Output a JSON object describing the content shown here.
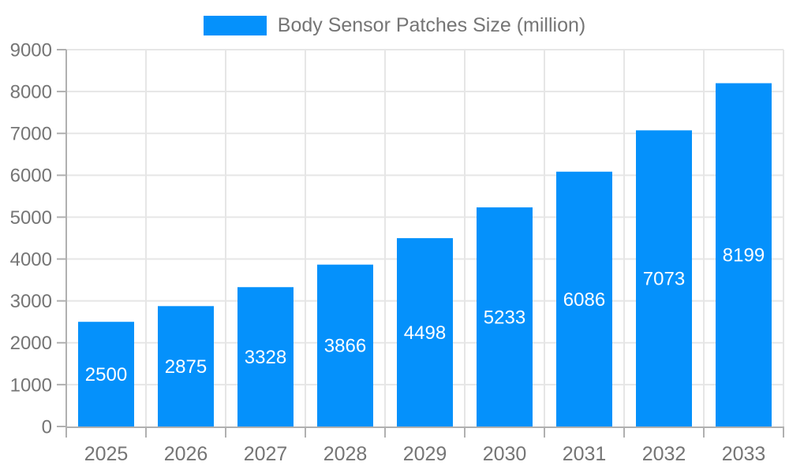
{
  "legend": {
    "label": "Body Sensor Patches Size (million)"
  },
  "chart_data": {
    "type": "bar",
    "title": "",
    "categories": [
      "2025",
      "2026",
      "2027",
      "2028",
      "2029",
      "2030",
      "2031",
      "2032",
      "2033"
    ],
    "values": [
      2500,
      2875,
      3328,
      3866,
      4498,
      5233,
      6086,
      7073,
      8199
    ],
    "series_name": "Body Sensor Patches Size (million)",
    "xlabel": "",
    "ylabel": "",
    "ylim": [
      0,
      9000
    ],
    "ytick_step": 1000,
    "ytick_labels": [
      "0",
      "1000",
      "2000",
      "3000",
      "4000",
      "5000",
      "6000",
      "7000",
      "8000",
      "9000"
    ],
    "grid": true,
    "legend_position": "top-center",
    "value_labels": "inside-center",
    "bar_color": "#0591fb",
    "value_label_color": "#ffffff"
  },
  "colors": {
    "background": "#ffffff",
    "grid": "#e6e6e6",
    "axis": "#b0b0b0",
    "tick_text": "#757575"
  }
}
